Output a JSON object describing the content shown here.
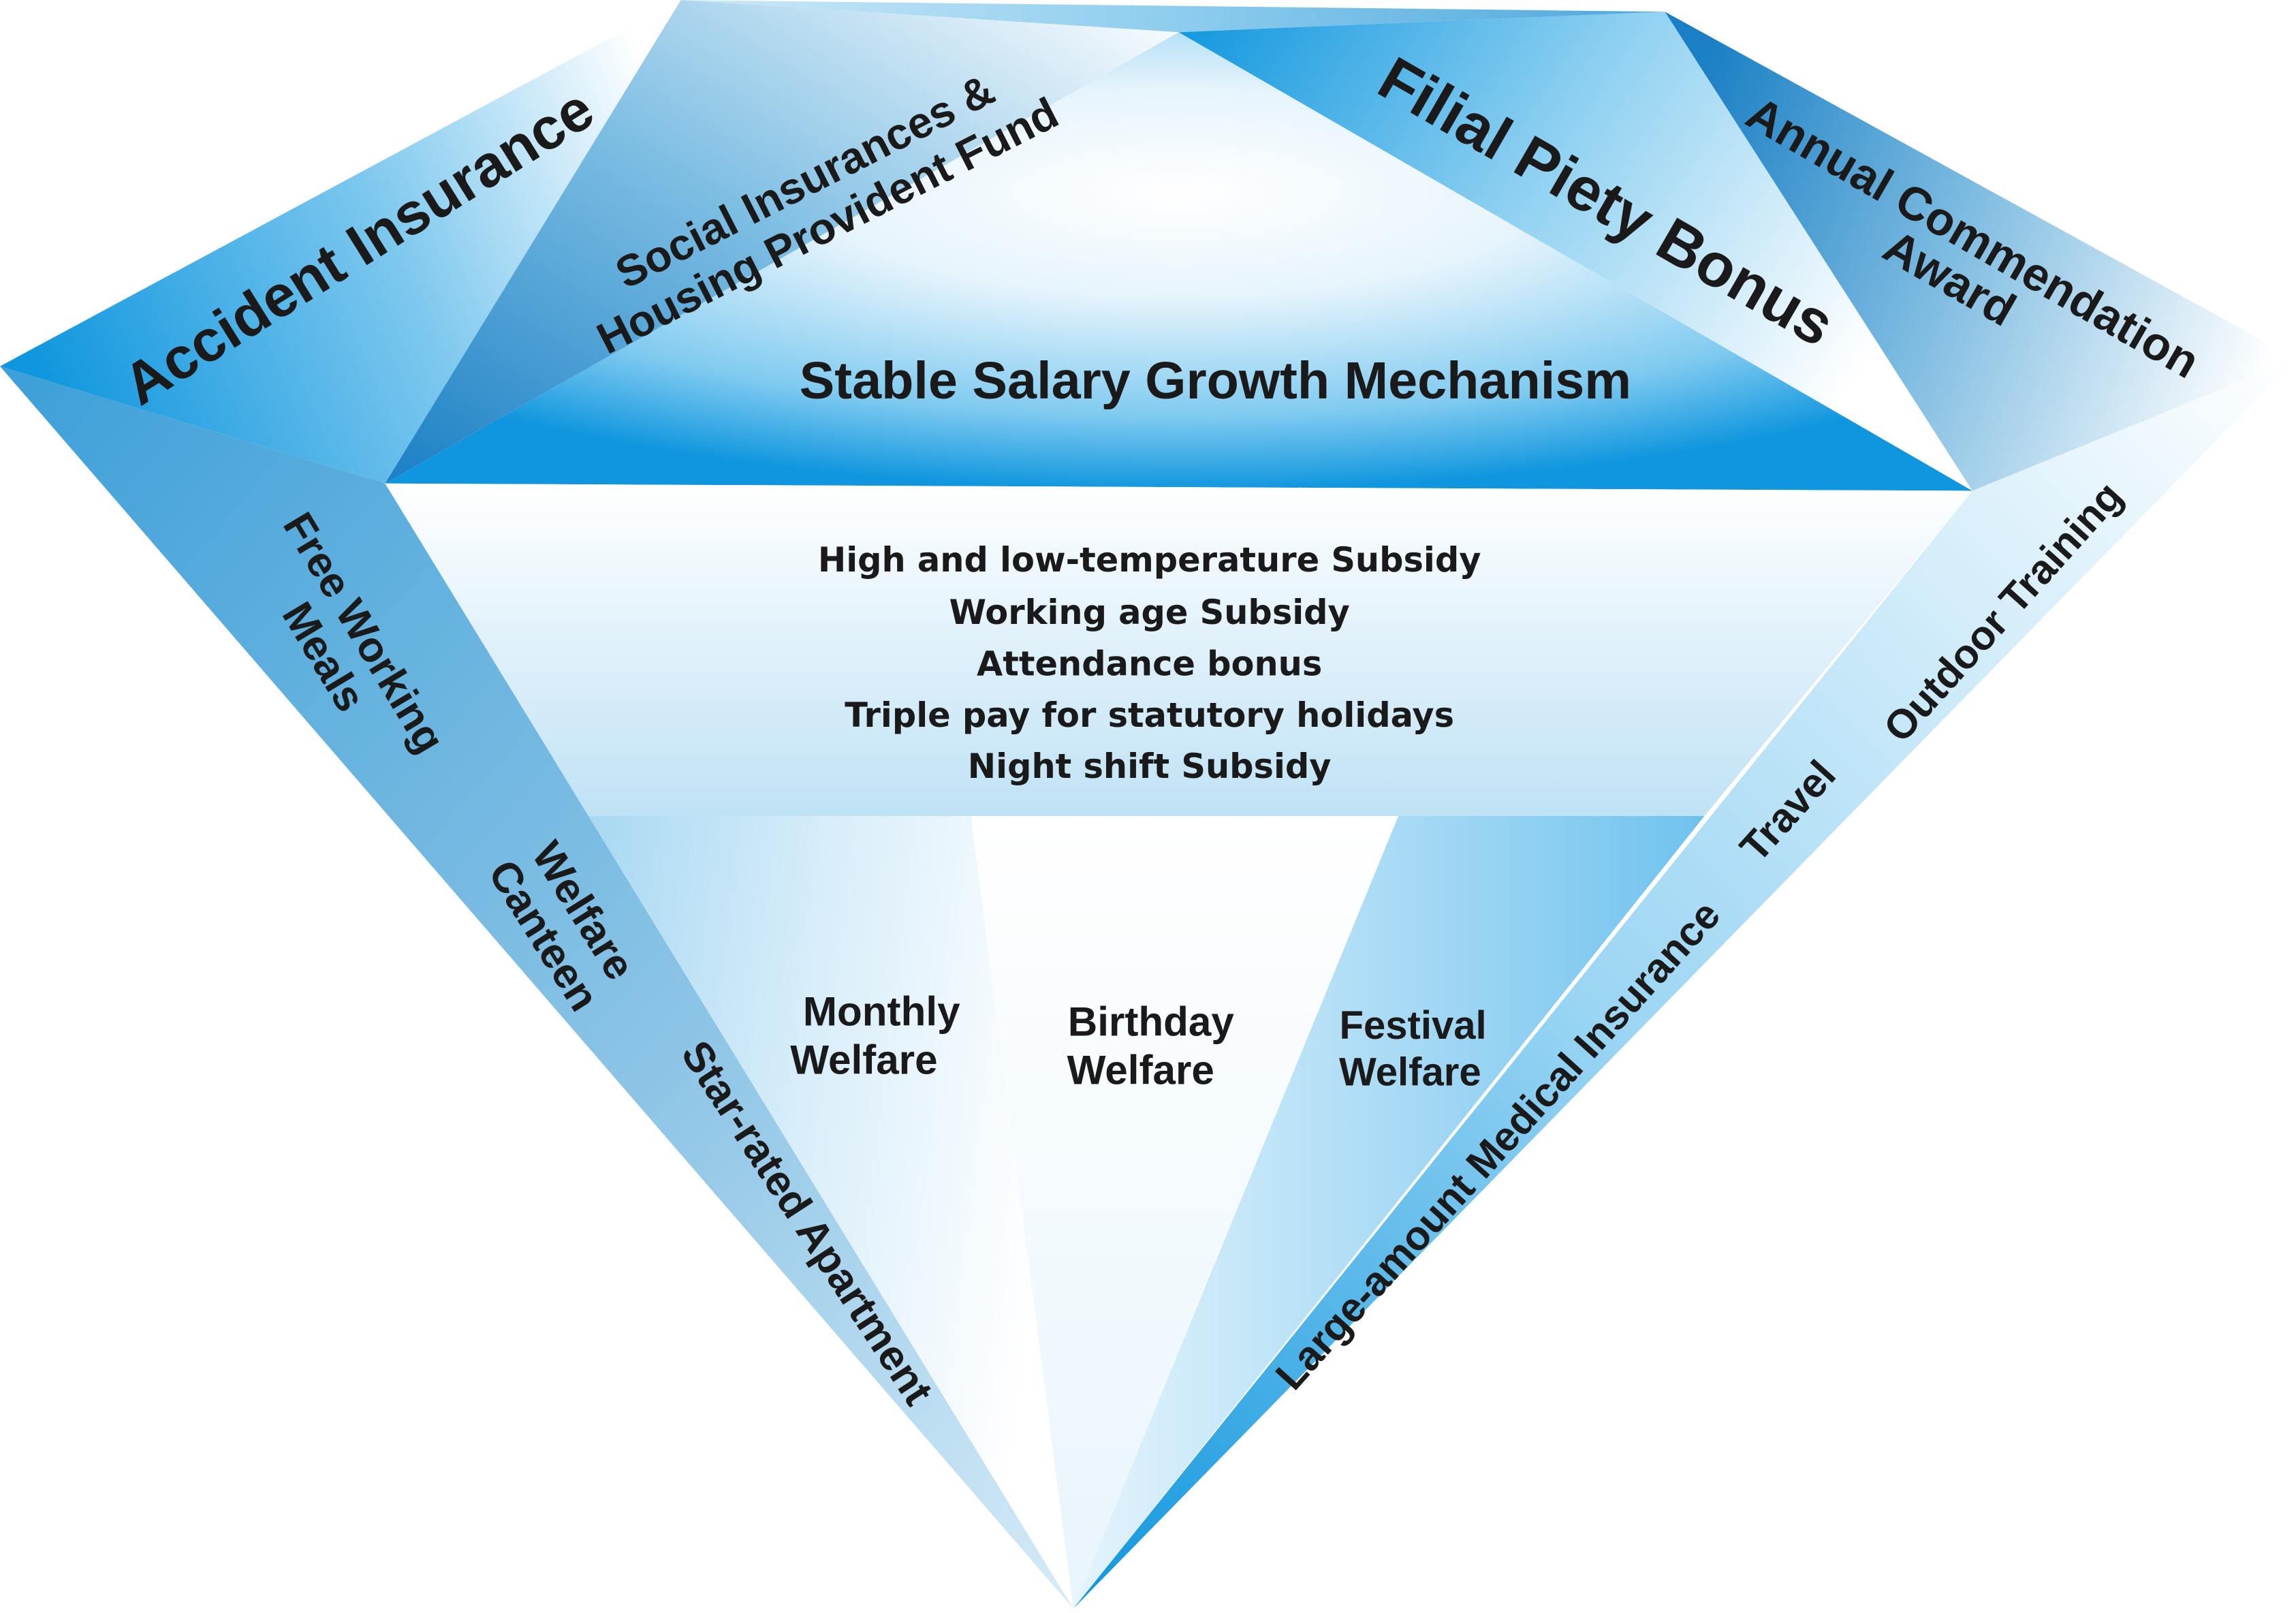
{
  "colors": {
    "deep_blue": "#0f96de",
    "mid_blue": "#5ab8ea",
    "light_blue": "#bfe3f6",
    "white": "#ffffff",
    "text": "#1a1a1a"
  },
  "crown": {
    "accident_insurance": "Accident Insurance",
    "social_insurances": [
      "Social Insurances &",
      "Housing Provident Fund"
    ],
    "salary_growth": "Stable Salary Growth Mechanism",
    "filial_piety": "Filial Piety Bonus",
    "annual_commendation": [
      "Annual Commendation",
      "Award"
    ]
  },
  "girdle": {
    "items": [
      "High and low-temperature Subsidy",
      "Working age  Subsidy",
      "Attendance bonus",
      "Triple pay for statutory holidays",
      "Night shift  Subsidy"
    ]
  },
  "pavilion_left": {
    "free_meals": [
      "Free Working",
      "Meals"
    ],
    "welfare_canteen": [
      "Welfare",
      "Canteen"
    ],
    "apartment": "Star-rated Apartment"
  },
  "pavilion_center": {
    "monthly": [
      "Monthly",
      "Welfare"
    ],
    "birthday": [
      "Birthday",
      "Welfare"
    ],
    "festival": [
      "Festival",
      "Welfare"
    ]
  },
  "pavilion_right": {
    "medical": "Large-amount Medical Insurance",
    "travel": "Travel",
    "outdoor": "Outdoor Training"
  }
}
